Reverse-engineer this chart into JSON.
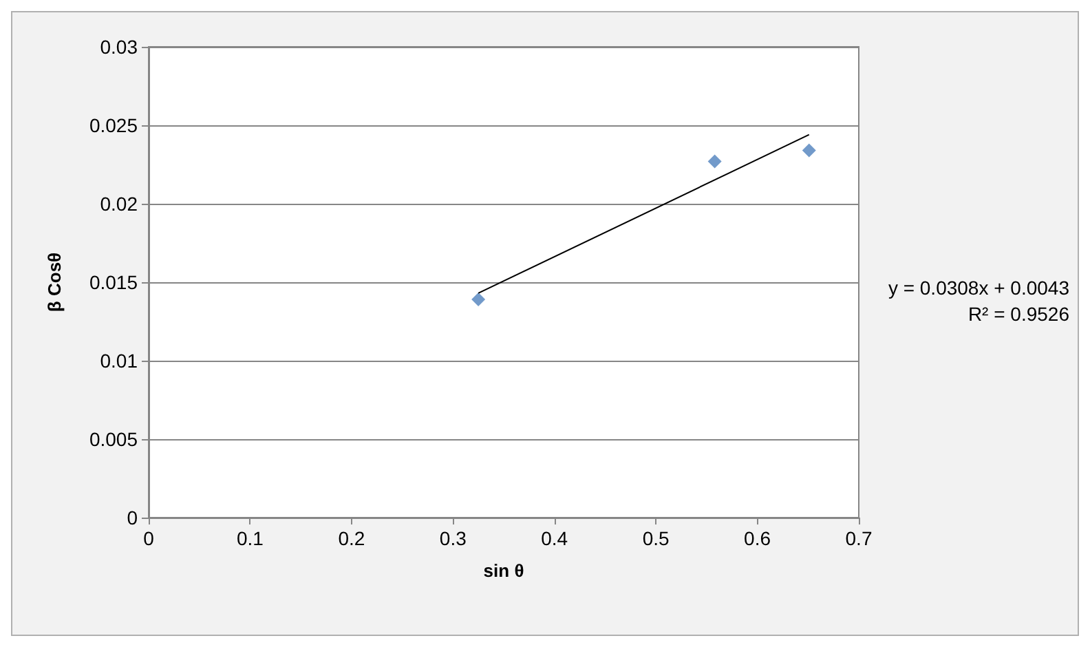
{
  "chart_data": {
    "type": "scatter",
    "xlabel": "sin θ",
    "ylabel": "β Cosθ",
    "xlim": [
      0,
      0.7
    ],
    "xticks": [
      0,
      0.1,
      0.2,
      0.3,
      0.4,
      0.5,
      0.6,
      0.7
    ],
    "ylim": [
      0,
      0.03
    ],
    "yticks": [
      0,
      0.005,
      0.01,
      0.015,
      0.02,
      0.025,
      0.03
    ],
    "grid": "y",
    "marker": "diamond",
    "series": [
      {
        "color": "#4f81bd",
        "x": [
          0.325,
          0.558,
          0.651
        ],
        "values": [
          0.0139,
          0.0227,
          0.0234
        ]
      },
      {
        "type": "line",
        "color": "#000000",
        "marker": "none",
        "x": [
          0.325,
          0.651
        ],
        "values": [
          0.0143,
          0.0244
        ]
      }
    ],
    "annotations": [
      "y = 0.0308x + 0.0043",
      "R² = 0.9526"
    ]
  }
}
